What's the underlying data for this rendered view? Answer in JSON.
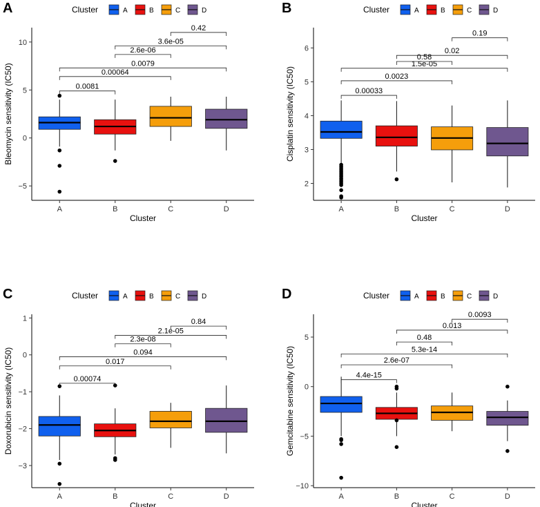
{
  "legend": {
    "title": "Cluster",
    "entries": [
      {
        "label": "A",
        "color": "#1060EE"
      },
      {
        "label": "B",
        "color": "#E8110F"
      },
      {
        "label": "C",
        "color": "#F59E0B"
      },
      {
        "label": "D",
        "color": "#6F578F"
      }
    ]
  },
  "chart_data": [
    {
      "type": "boxplot",
      "panel": "A",
      "xlabel": "Cluster",
      "ylabel": "Bleomycin sensitivity (IC50)",
      "categories": [
        "A",
        "B",
        "C",
        "D"
      ],
      "ylim": [
        -6.5,
        11.5
      ],
      "yticks": [
        -5,
        0,
        5,
        10
      ],
      "boxes": [
        {
          "cat": "A",
          "q1": 0.9,
          "median": 1.6,
          "q3": 2.2,
          "whisker_low": -0.9,
          "whisker_high": 4.0,
          "outliers": [
            4.4,
            -1.3,
            -2.9,
            -5.6
          ]
        },
        {
          "cat": "B",
          "q1": 0.4,
          "median": 1.2,
          "q3": 1.9,
          "whisker_low": -1.3,
          "whisker_high": 4.0,
          "outliers": [
            -2.4
          ]
        },
        {
          "cat": "C",
          "q1": 1.2,
          "median": 2.1,
          "q3": 3.3,
          "whisker_low": -0.3,
          "whisker_high": 4.3,
          "outliers": []
        },
        {
          "cat": "D",
          "q1": 1.0,
          "median": 1.9,
          "q3": 3.0,
          "whisker_low": -1.3,
          "whisker_high": 4.3,
          "outliers": []
        }
      ],
      "comparisons": [
        {
          "from": "A",
          "to": "B",
          "label": "0.0081",
          "y": 4.9
        },
        {
          "from": "A",
          "to": "C",
          "label": "0.00064",
          "y": 6.4
        },
        {
          "from": "A",
          "to": "D",
          "label": "0.0079",
          "y": 7.3
        },
        {
          "from": "B",
          "to": "C",
          "label": "2.6e-06",
          "y": 8.7
        },
        {
          "from": "B",
          "to": "D",
          "label": "3.6e-05",
          "y": 9.6
        },
        {
          "from": "C",
          "to": "D",
          "label": "0.42",
          "y": 11.0
        }
      ]
    },
    {
      "type": "boxplot",
      "panel": "B",
      "xlabel": "Cluster",
      "ylabel": "Cisplatin sensitivity (IC50)",
      "categories": [
        "A",
        "B",
        "C",
        "D"
      ],
      "ylim": [
        1.5,
        6.6
      ],
      "yticks": [
        2,
        3,
        4,
        5,
        6
      ],
      "boxes": [
        {
          "cat": "A",
          "q1": 3.33,
          "median": 3.52,
          "q3": 3.84,
          "whisker_low": 2.6,
          "whisker_high": 4.45,
          "outliers": [
            2.55,
            2.5,
            2.45,
            2.4,
            2.35,
            2.3,
            2.25,
            2.2,
            2.15,
            2.1,
            2.05,
            2.0,
            1.95,
            1.8,
            1.62,
            1.58
          ]
        },
        {
          "cat": "B",
          "q1": 3.1,
          "median": 3.36,
          "q3": 3.7,
          "whisker_low": 2.35,
          "whisker_high": 4.43,
          "outliers": [
            2.12
          ]
        },
        {
          "cat": "C",
          "q1": 2.99,
          "median": 3.34,
          "q3": 3.67,
          "whisker_low": 2.03,
          "whisker_high": 4.3,
          "outliers": []
        },
        {
          "cat": "D",
          "q1": 2.81,
          "median": 3.18,
          "q3": 3.65,
          "whisker_low": 1.88,
          "whisker_high": 4.45,
          "outliers": []
        }
      ],
      "comparisons": [
        {
          "from": "A",
          "to": "B",
          "label": "0.00033",
          "y": 4.6
        },
        {
          "from": "A",
          "to": "C",
          "label": "0.0023",
          "y": 5.03
        },
        {
          "from": "A",
          "to": "D",
          "label": "1.5e-05",
          "y": 5.4
        },
        {
          "from": "B",
          "to": "D",
          "label": "0.02",
          "y": 5.78
        },
        {
          "from": "B",
          "to": "C",
          "label": "0.58",
          "y": 5.6
        },
        {
          "from": "C",
          "to": "D",
          "label": "0.19",
          "y": 6.3
        }
      ]
    },
    {
      "type": "boxplot",
      "panel": "C",
      "xlabel": "Cluster",
      "ylabel": "Doxorubicin sensitivity (IC50)",
      "categories": [
        "A",
        "B",
        "C",
        "D"
      ],
      "ylim": [
        -3.6,
        1.1
      ],
      "yticks": [
        -3,
        -2,
        -1,
        0,
        1
      ],
      "boxes": [
        {
          "cat": "A",
          "q1": -2.2,
          "median": -1.9,
          "q3": -1.67,
          "whisker_low": -2.85,
          "whisker_high": -1.1,
          "outliers": [
            -0.85,
            -2.95,
            -3.5
          ]
        },
        {
          "cat": "B",
          "q1": -2.22,
          "median": -2.05,
          "q3": -1.87,
          "whisker_low": -2.7,
          "whisker_high": -1.45,
          "outliers": [
            -0.83,
            -2.8,
            -2.85
          ]
        },
        {
          "cat": "C",
          "q1": -1.98,
          "median": -1.8,
          "q3": -1.53,
          "whisker_low": -2.52,
          "whisker_high": -1.3,
          "outliers": []
        },
        {
          "cat": "D",
          "q1": -2.1,
          "median": -1.8,
          "q3": -1.45,
          "whisker_low": -2.67,
          "whisker_high": -0.83,
          "outliers": []
        }
      ],
      "comparisons": [
        {
          "from": "A",
          "to": "B",
          "label": "0.00074",
          "y": -0.77
        },
        {
          "from": "A",
          "to": "C",
          "label": "0.017",
          "y": -0.3
        },
        {
          "from": "A",
          "to": "D",
          "label": "0.094",
          "y": -0.05
        },
        {
          "from": "B",
          "to": "C",
          "label": "2.3e-08",
          "y": 0.3
        },
        {
          "from": "B",
          "to": "D",
          "label": "2.1e-05",
          "y": 0.53
        },
        {
          "from": "C",
          "to": "D",
          "label": "0.84",
          "y": 0.78
        }
      ]
    },
    {
      "type": "boxplot",
      "panel": "D",
      "xlabel": "Cluster",
      "ylabel": "Gemcitabine sensitivity (IC50)",
      "categories": [
        "A",
        "B",
        "C",
        "D"
      ],
      "ylim": [
        -10.2,
        7.3
      ],
      "yticks": [
        -10,
        -5,
        0,
        5
      ],
      "boxes": [
        {
          "cat": "A",
          "q1": -2.6,
          "median": -1.7,
          "q3": -1.0,
          "whisker_low": -5.0,
          "whisker_high": 1.0,
          "outliers": [
            -5.3,
            -5.4,
            -5.8,
            -9.2
          ]
        },
        {
          "cat": "B",
          "q1": -3.3,
          "median": -2.7,
          "q3": -2.1,
          "whisker_low": -5.0,
          "whisker_high": -0.6,
          "outliers": [
            -0.2,
            0.0,
            -3.4,
            -6.1
          ]
        },
        {
          "cat": "C",
          "q1": -3.4,
          "median": -2.6,
          "q3": -1.95,
          "whisker_low": -4.5,
          "whisker_high": -0.6,
          "outliers": []
        },
        {
          "cat": "D",
          "q1": -3.9,
          "median": -3.1,
          "q3": -2.5,
          "whisker_low": -5.5,
          "whisker_high": -1.4,
          "outliers": [
            0.0,
            -6.5
          ]
        }
      ],
      "comparisons": [
        {
          "from": "A",
          "to": "B",
          "label": "4.4e-15",
          "y": 0.7
        },
        {
          "from": "A",
          "to": "C",
          "label": "2.6e-07",
          "y": 2.2
        },
        {
          "from": "A",
          "to": "D",
          "label": "5.3e-14",
          "y": 3.3
        },
        {
          "from": "B",
          "to": "C",
          "label": "0.48",
          "y": 4.5
        },
        {
          "from": "B",
          "to": "D",
          "label": "0.013",
          "y": 5.7
        },
        {
          "from": "C",
          "to": "D",
          "label": "0.0093",
          "y": 6.8
        }
      ]
    }
  ]
}
